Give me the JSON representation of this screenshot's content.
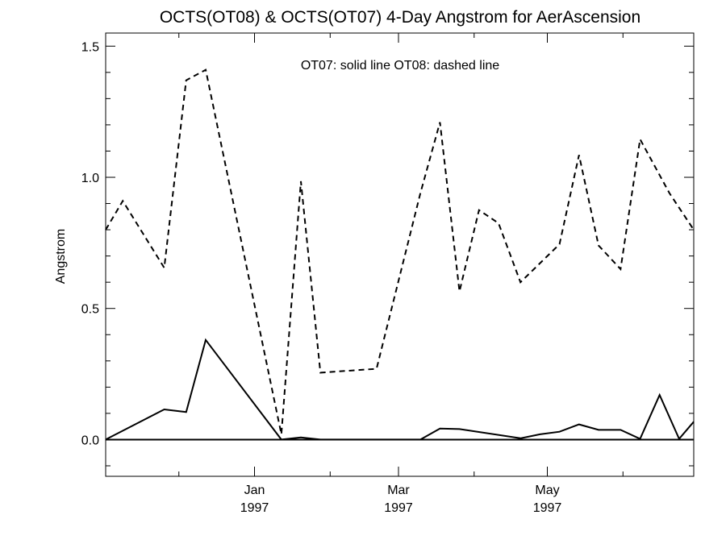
{
  "chart_data": {
    "type": "line",
    "title": "OCTS(OT08) & OCTS(OT07) 4-Day Angstrom for AerAscension",
    "annotation": "OT07: solid line   OT08: dashed line",
    "ylabel": "Angstrom",
    "xlabel": "",
    "x_range": [
      "1996-11-01",
      "1997-06-30"
    ],
    "ylim": [
      -0.14,
      1.55
    ],
    "y_ticks": [
      0.0,
      0.5,
      1.0,
      1.5
    ],
    "y_tick_labels": [
      "0.0",
      "0.5",
      "1.0",
      "1.5"
    ],
    "x_ticks": [
      {
        "date": "1997-01-01",
        "label_month": "Jan",
        "label_year": "1997"
      },
      {
        "date": "1997-03-01",
        "label_month": "Mar",
        "label_year": "1997"
      },
      {
        "date": "1997-05-01",
        "label_month": "May",
        "label_year": "1997"
      }
    ],
    "x_minor_ticks": [
      "1996-12-01",
      "1997-02-01",
      "1997-04-01",
      "1997-06-01"
    ],
    "zero_line": true,
    "series": [
      {
        "name": "OT07",
        "style": "solid",
        "points": [
          {
            "date": "1996-11-01",
            "y": 0.0
          },
          {
            "date": "1996-11-25",
            "y": 0.115
          },
          {
            "date": "1996-12-04",
            "y": 0.105
          },
          {
            "date": "1996-12-12",
            "y": 0.38
          },
          {
            "date": "1997-01-12",
            "y": 0.0
          },
          {
            "date": "1997-01-20",
            "y": 0.008
          },
          {
            "date": "1997-01-28",
            "y": 0.0
          },
          {
            "date": "1997-02-14",
            "y": 0.0
          },
          {
            "date": "1997-03-10",
            "y": 0.0
          },
          {
            "date": "1997-03-18",
            "y": 0.042
          },
          {
            "date": "1997-03-26",
            "y": 0.04
          },
          {
            "date": "1997-04-20",
            "y": 0.005
          },
          {
            "date": "1997-04-28",
            "y": 0.02
          },
          {
            "date": "1997-05-06",
            "y": 0.03
          },
          {
            "date": "1997-05-14",
            "y": 0.058
          },
          {
            "date": "1997-05-22",
            "y": 0.037
          },
          {
            "date": "1997-05-31",
            "y": 0.037
          },
          {
            "date": "1997-06-08",
            "y": 0.003
          },
          {
            "date": "1997-06-16",
            "y": 0.17
          },
          {
            "date": "1997-06-24",
            "y": 0.003
          },
          {
            "date": "1997-06-30",
            "y": 0.068
          }
        ]
      },
      {
        "name": "OT08",
        "style": "dashed",
        "points": [
          {
            "date": "1996-11-01",
            "y": 0.8
          },
          {
            "date": "1996-11-08",
            "y": 0.91
          },
          {
            "date": "1996-11-25",
            "y": 0.655
          },
          {
            "date": "1996-12-04",
            "y": 1.37
          },
          {
            "date": "1996-12-12",
            "y": 1.41
          },
          {
            "date": "1997-01-12",
            "y": 0.02
          },
          {
            "date": "1997-01-20",
            "y": 0.985
          },
          {
            "date": "1997-01-28",
            "y": 0.255
          },
          {
            "date": "1997-02-20",
            "y": 0.27
          },
          {
            "date": "1997-03-10",
            "y": 0.94
          },
          {
            "date": "1997-03-18",
            "y": 1.21
          },
          {
            "date": "1997-03-26",
            "y": 0.565
          },
          {
            "date": "1997-04-03",
            "y": 0.875
          },
          {
            "date": "1997-04-11",
            "y": 0.825
          },
          {
            "date": "1997-04-20",
            "y": 0.6
          },
          {
            "date": "1997-05-06",
            "y": 0.745
          },
          {
            "date": "1997-05-14",
            "y": 1.085
          },
          {
            "date": "1997-05-22",
            "y": 0.74
          },
          {
            "date": "1997-05-31",
            "y": 0.65
          },
          {
            "date": "1997-06-08",
            "y": 1.145
          },
          {
            "date": "1997-06-20",
            "y": 0.94
          },
          {
            "date": "1997-06-30",
            "y": 0.8
          }
        ]
      }
    ]
  }
}
